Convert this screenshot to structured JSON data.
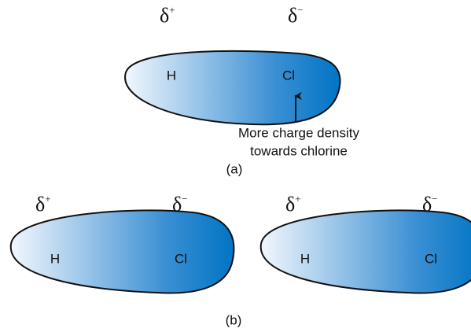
{
  "part_a": {
    "molecule": {
      "left_charge": {
        "symbol": "δ",
        "sign": "+"
      },
      "right_charge": {
        "symbol": "δ",
        "sign": "−"
      },
      "left_atom": "H",
      "right_atom": "Cl"
    },
    "annotation": [
      "More charge density",
      "towards chlorine"
    ],
    "caption": "(a)"
  },
  "part_b": {
    "molecules": [
      {
        "left_charge": {
          "symbol": "δ",
          "sign": "+"
        },
        "right_charge": {
          "symbol": "δ",
          "sign": "−"
        },
        "left_atom": "H",
        "right_atom": "Cl"
      },
      {
        "left_charge": {
          "symbol": "δ",
          "sign": "+"
        },
        "right_charge": {
          "symbol": "δ",
          "sign": "−"
        },
        "left_atom": "H",
        "right_atom": "Cl"
      }
    ],
    "caption": "(b)"
  }
}
